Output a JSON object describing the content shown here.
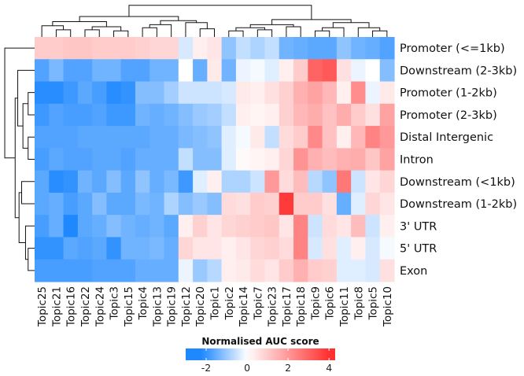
{
  "chart_data": {
    "type": "heatmap",
    "title": "",
    "columns": [
      "Topic25",
      "Topic21",
      "Topic16",
      "Topic22",
      "Topic24",
      "Topic3",
      "Topic15",
      "Topic4",
      "Topic13",
      "Topic19",
      "Topic12",
      "Topic20",
      "Topic1",
      "Topic2",
      "Topic14",
      "Topic7",
      "Topic23",
      "Topic17",
      "Topic18",
      "Topic9",
      "Topic6",
      "Topic11",
      "Topic8",
      "Topic5",
      "Topic10"
    ],
    "rows": [
      "Promoter (<=1kb)",
      "Downstream (2-3kb)",
      "Promoter (1-2kb)",
      "Promoter (2-3kb)",
      "Distal Intergenic",
      "Intron",
      "Downstream (<1kb)",
      "Downstream (1-2kb)",
      "3' UTR",
      "5' UTR",
      "Exon"
    ],
    "values": [
      [
        1.0,
        1.0,
        1.1,
        1.1,
        1.0,
        1.0,
        1.0,
        0.9,
        0.8,
        0.8,
        -0.4,
        0.3,
        0.5,
        -1.1,
        -0.6,
        -0.8,
        -0.6,
        -1.4,
        -1.5,
        -1.6,
        -1.6,
        -1.1,
        -1.4,
        -1.5,
        -1.7
      ],
      [
        -1.7,
        -1.3,
        -1.7,
        -1.7,
        -1.4,
        -1.4,
        -1.7,
        -1.7,
        -1.4,
        -1.4,
        0.0,
        -1.5,
        0.4,
        -1.4,
        -0.2,
        -0.1,
        -0.3,
        0.3,
        1.0,
        3.0,
        3.2,
        0.6,
        -0.2,
        0.0,
        -1.2
      ],
      [
        -2.1,
        -2.1,
        -1.9,
        -1.6,
        -1.8,
        -2.1,
        -2.0,
        -1.2,
        -1.2,
        -0.9,
        -0.5,
        -0.5,
        -0.5,
        -0.4,
        0.4,
        0.3,
        0.6,
        0.9,
        1.5,
        1.8,
        1.4,
        0.3,
        2.2,
        -0.2,
        0.4
      ],
      [
        -1.9,
        -1.7,
        -1.8,
        -1.8,
        -1.7,
        -1.9,
        -1.9,
        -1.4,
        -1.5,
        -1.4,
        -1.2,
        -1.0,
        -0.9,
        -0.6,
        0.3,
        0.2,
        0.3,
        0.9,
        1.4,
        1.6,
        1.2,
        1.6,
        1.0,
        0.6,
        1.8
      ],
      [
        -1.7,
        -1.7,
        -1.7,
        -1.6,
        -1.6,
        -1.6,
        -1.6,
        -1.6,
        -1.5,
        -1.5,
        -1.3,
        -1.2,
        -1.1,
        -0.3,
        -0.1,
        0.4,
        -0.6,
        0.7,
        1.0,
        2.3,
        1.2,
        0.3,
        1.4,
        2.4,
        2.0
      ],
      [
        -1.8,
        -1.6,
        -1.7,
        -1.7,
        -1.6,
        -1.6,
        -1.7,
        -1.5,
        -1.5,
        -1.5,
        -0.6,
        -1.2,
        -1.2,
        -0.3,
        0.1,
        0.2,
        0.3,
        0.8,
        2.1,
        1.5,
        1.3,
        1.5,
        1.6,
        1.1,
        1.8
      ],
      [
        -1.6,
        -2.1,
        -2.0,
        -1.4,
        -1.6,
        -1.2,
        -1.6,
        -1.1,
        -1.5,
        -1.3,
        -1.9,
        -0.3,
        0.3,
        -0.8,
        -0.8,
        -0.5,
        2.0,
        0.7,
        1.3,
        -0.7,
        -1.1,
        2.6,
        -0.5,
        0.5,
        0.8
      ],
      [
        -1.6,
        -1.5,
        -1.8,
        -1.6,
        -1.2,
        -1.6,
        -1.6,
        -1.3,
        -1.4,
        -0.8,
        -1.2,
        -1.0,
        -1.2,
        0.7,
        0.6,
        1.0,
        0.9,
        3.8,
        1.0,
        1.0,
        0.6,
        -1.5,
        -0.3,
        0.8,
        0.5
      ],
      [
        -1.8,
        -1.5,
        -2.2,
        -1.6,
        -1.5,
        -1.2,
        -1.4,
        -1.5,
        -1.4,
        -1.6,
        0.3,
        0.9,
        0.5,
        0.8,
        0.9,
        1.0,
        1.1,
        0.5,
        2.4,
        -0.5,
        0.7,
        0.5,
        1.3,
        -0.5,
        0.3
      ],
      [
        -2.0,
        -2.0,
        -1.6,
        -1.7,
        -1.6,
        -2.0,
        -1.4,
        -1.4,
        -1.3,
        -1.5,
        0.8,
        0.5,
        0.5,
        0.3,
        0.5,
        0.8,
        0.9,
        0.7,
        2.4,
        -0.4,
        0.6,
        -0.3,
        0.3,
        -0.4,
        -0.1
      ],
      [
        -1.8,
        -1.8,
        -1.8,
        -1.8,
        -1.7,
        -1.7,
        -1.7,
        -1.5,
        -1.5,
        -1.5,
        -0.2,
        -1.0,
        -0.7,
        0.3,
        0.4,
        0.7,
        0.5,
        1.0,
        1.5,
        1.0,
        0.9,
        -0.3,
        -0.3,
        -0.4,
        0.6
      ]
    ],
    "legend": {
      "title": "Normalised AUC score",
      "ticks": [
        -2,
        0,
        2,
        4
      ],
      "range": [
        -3,
        4.3
      ],
      "colors": {
        "low": "#1e88ff",
        "mid": "#ffffff",
        "high": "#ff3030"
      },
      "placement": "bottom"
    },
    "row_dendrogram": true,
    "column_dendrogram": true
  }
}
